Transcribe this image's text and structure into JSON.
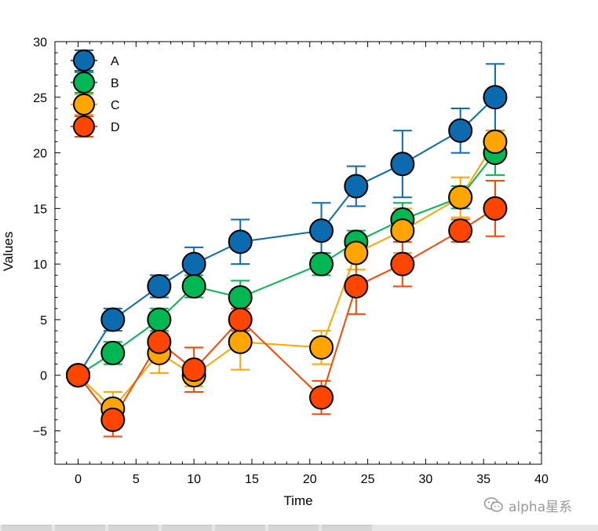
{
  "chart_data": {
    "type": "line",
    "xlabel": "Time",
    "ylabel": "Values",
    "xlim": [
      -2,
      40
    ],
    "ylim": [
      -8,
      30
    ],
    "xticks": [
      0,
      5,
      10,
      15,
      20,
      25,
      30,
      35,
      40
    ],
    "yticks": [
      -5,
      0,
      5,
      10,
      15,
      20,
      25,
      30
    ],
    "ytick_labels": [
      "−5",
      "0",
      "5",
      "10",
      "15",
      "20",
      "25",
      "30"
    ],
    "grid": false,
    "legend_position": "top-left",
    "x": [
      0,
      3,
      7,
      10,
      14,
      21,
      24,
      28,
      33,
      36
    ],
    "series": [
      {
        "name": "A",
        "color": "#0C6BAE",
        "values": [
          0,
          5,
          8,
          10,
          12,
          13,
          17,
          19,
          22,
          25
        ],
        "errors": [
          0,
          1,
          1,
          1.5,
          2,
          2.5,
          1.8,
          3,
          2,
          3
        ]
      },
      {
        "name": "B",
        "color": "#00B754",
        "values": [
          0,
          2,
          5,
          8,
          7,
          10,
          12,
          14,
          16,
          20
        ],
        "errors": [
          0,
          1,
          1,
          1,
          1.5,
          1,
          1,
          1.5,
          1,
          2
        ]
      },
      {
        "name": "C",
        "color": "#FFA500",
        "values": [
          0,
          -3,
          2,
          0,
          3,
          2.5,
          11,
          13,
          16,
          21
        ],
        "errors": [
          0,
          1.5,
          1.8,
          1,
          2.5,
          1.5,
          1.5,
          2,
          1.8,
          1
        ]
      },
      {
        "name": "D",
        "color": "#FF4500",
        "values": [
          0,
          -4,
          3,
          0.5,
          5,
          -2,
          8,
          10,
          13,
          15
        ],
        "errors": [
          0,
          1.5,
          1.5,
          2,
          1,
          1.5,
          2.5,
          2,
          1,
          2.5
        ]
      }
    ]
  },
  "watermark": {
    "text": "alpha星系",
    "icon": "wechat-icon"
  }
}
